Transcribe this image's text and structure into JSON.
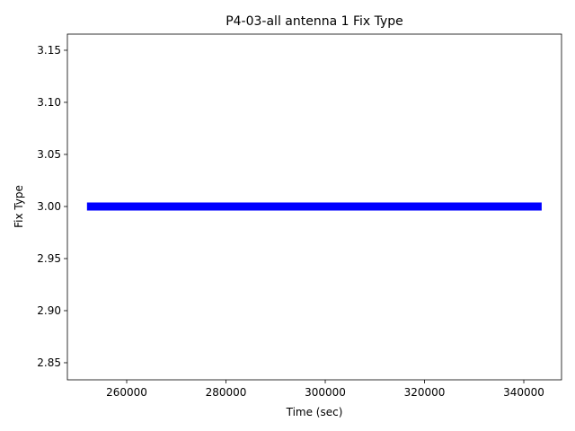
{
  "chart_data": {
    "type": "line",
    "title": "P4-03-all antenna 1 Fix Type",
    "xlabel": "Time (sec)",
    "ylabel": "Fix Type",
    "x": [
      252000,
      343600
    ],
    "series": [
      {
        "name": "Fix Type",
        "color": "#0000ff",
        "values": [
          3,
          3
        ]
      }
    ],
    "xlim": [
      248050,
      347600
    ],
    "xticks": [
      260000,
      280000,
      300000,
      320000,
      340000
    ],
    "ylim": [
      2.8336,
      3.1655
    ],
    "yticks": [
      2.85,
      {
        "value": 2.9,
        "label": "2.90"
      },
      2.95,
      {
        "value": 3,
        "label": "3.00"
      },
      3.05,
      {
        "value": 3.1,
        "label": "3.10"
      },
      3.15
    ],
    "grid": false
  }
}
